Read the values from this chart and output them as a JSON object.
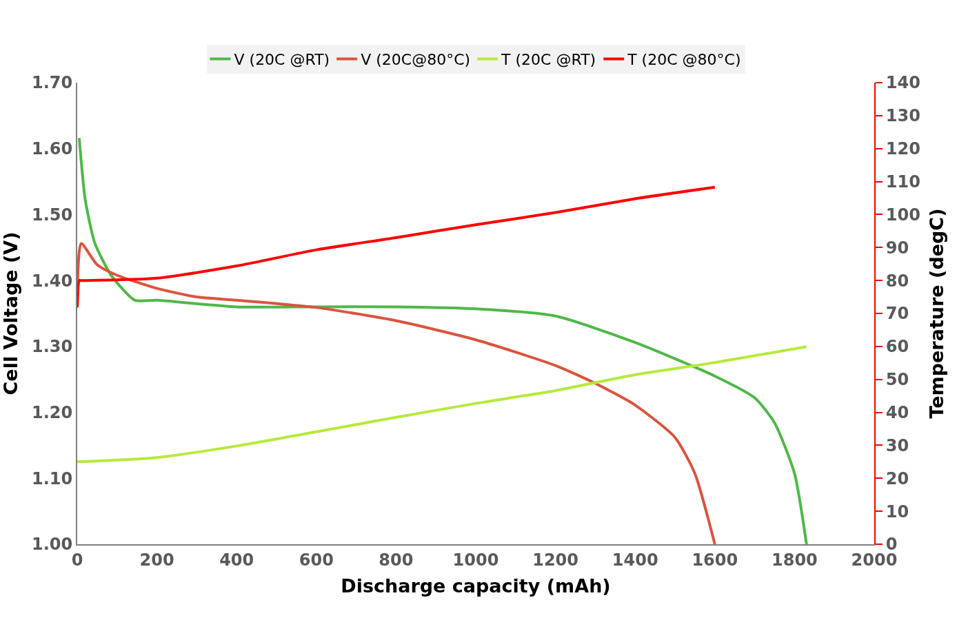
{
  "chart_data": {
    "type": "line",
    "xlabel": "Discharge capacity (mAh)",
    "ylabel": "Cell Voltage (V)",
    "y2label": "Temperature (degC)",
    "xlim": [
      0,
      2000
    ],
    "xticks": [
      0,
      200,
      400,
      600,
      800,
      1000,
      1200,
      1400,
      1600,
      1800,
      2000
    ],
    "ylim": [
      1.0,
      1.7
    ],
    "yticks": [
      {
        "value": 1.0,
        "label": "1.00"
      },
      {
        "value": 1.1,
        "label": "1.10"
      },
      {
        "value": 1.2,
        "label": "1.20"
      },
      {
        "value": 1.3,
        "label": "1.30"
      },
      {
        "value": 1.4,
        "label": "1.40"
      },
      {
        "value": 1.5,
        "label": "1.50"
      },
      {
        "value": 1.6,
        "label": "1.60"
      },
      {
        "value": 1.7,
        "label": "1.70"
      }
    ],
    "y2lim": [
      0,
      140
    ],
    "y2ticks": [
      0,
      10,
      20,
      30,
      40,
      50,
      60,
      70,
      80,
      90,
      100,
      110,
      120,
      130,
      140
    ],
    "legend": "top",
    "marker": "none",
    "line_style": "solid",
    "series": [
      {
        "name": "V (20C @RT)",
        "color": "#4fb848",
        "x": [
          5,
          20,
          44,
          85,
          145,
          200,
          400,
          600,
          800,
          1000,
          1200,
          1400,
          1600,
          1700,
          1750,
          1800,
          1830
        ],
        "values": [
          1.616,
          1.523,
          1.457,
          1.408,
          1.37,
          1.37,
          1.36,
          1.36,
          1.36,
          1.357,
          1.346,
          1.306,
          1.255,
          1.222,
          1.184,
          1.107,
          1.0
        ]
      },
      {
        "name": "V (20C@80°C)",
        "color": "#d9553f",
        "x": [
          0,
          10,
          50,
          100,
          200,
          300,
          400,
          600,
          800,
          1000,
          1200,
          1300,
          1400,
          1500,
          1550,
          1600
        ],
        "values": [
          1.359,
          1.456,
          1.424,
          1.408,
          1.388,
          1.375,
          1.37,
          1.359,
          1.339,
          1.31,
          1.271,
          1.244,
          1.211,
          1.162,
          1.107,
          1.0
        ]
      },
      {
        "name": "T (20C @RT)",
        "color": "#b5ea3c",
        "axis": "y2",
        "x": [
          0,
          200,
          400,
          600,
          800,
          1000,
          1200,
          1400,
          1600,
          1830
        ],
        "values": [
          25,
          26.3,
          29.8,
          34.1,
          38.5,
          42.7,
          46.6,
          51.4,
          55.1,
          59.9
        ]
      },
      {
        "name": "T (20C @80°C)",
        "color": "#ff0000",
        "axis": "y2",
        "x": [
          0,
          5,
          8,
          20,
          200,
          400,
          600,
          800,
          1000,
          1200,
          1400,
          1600
        ],
        "values": [
          72,
          80,
          80,
          80,
          80.7,
          84.4,
          89.3,
          93,
          96.9,
          100.6,
          104.8,
          108.3
        ]
      }
    ]
  }
}
